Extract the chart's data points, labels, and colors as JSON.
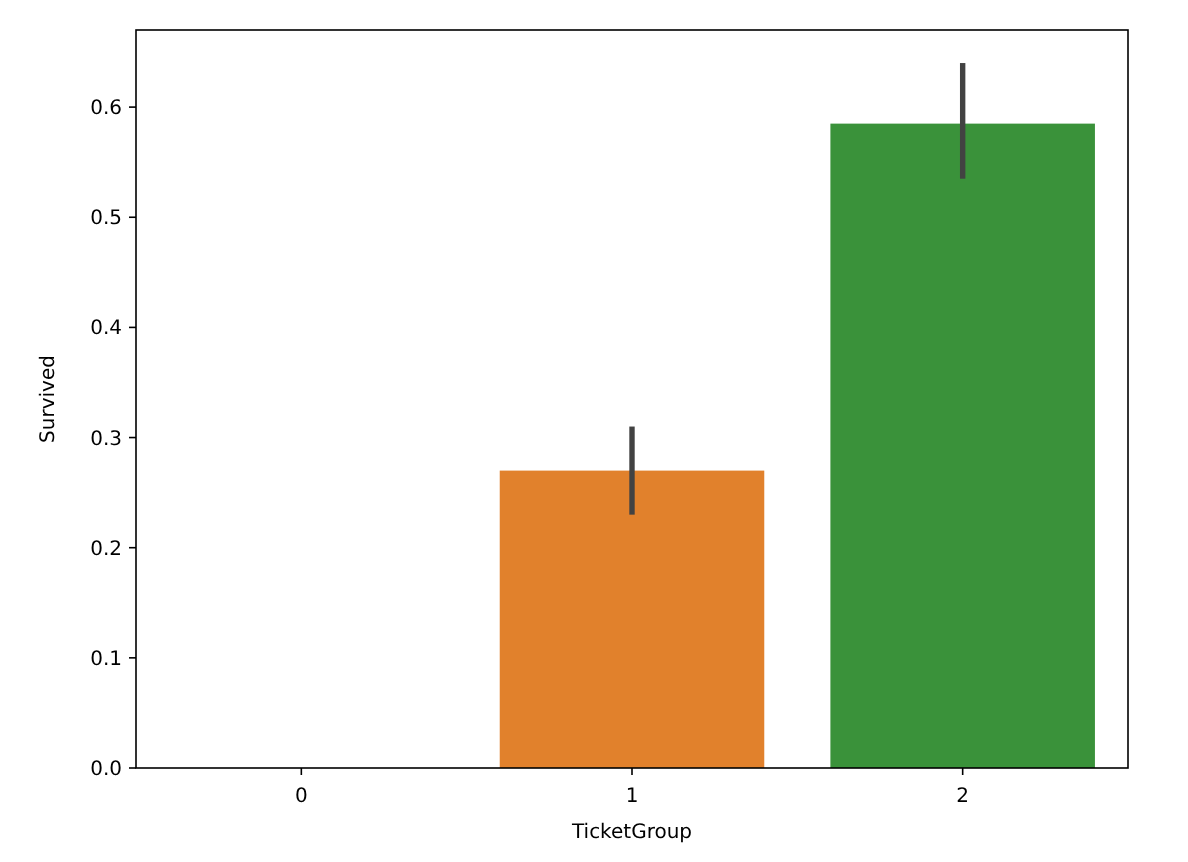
{
  "chart_data": {
    "type": "bar",
    "xlabel": "TicketGroup",
    "ylabel": "Survived",
    "categories": [
      "0",
      "1",
      "2"
    ],
    "values": [
      0,
      0.27,
      0.585
    ],
    "colors": [
      "#3274a1",
      "#e1812c",
      "#3a923a"
    ],
    "errors": [
      null,
      [
        0.23,
        0.31
      ],
      [
        0.535,
        0.64
      ]
    ],
    "ylim": [
      0,
      0.67
    ],
    "yticks": [
      {
        "value": 0,
        "label": "0.0"
      },
      0.1,
      0.2,
      0.3,
      0.4,
      0.5,
      0.6
    ],
    "grid": false
  }
}
